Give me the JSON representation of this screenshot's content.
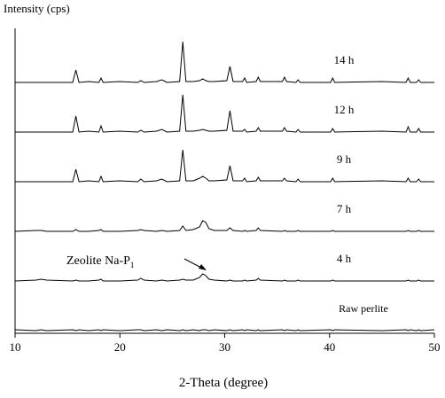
{
  "chart_data": {
    "type": "line",
    "ylabel": "Intensity (cps)",
    "xlabel": "2-Theta (degree)",
    "xlim": [
      10,
      50
    ],
    "xticks": [
      10,
      20,
      30,
      40,
      50
    ],
    "annotation": {
      "text": "Zeolite Na-P",
      "subscript": "1"
    },
    "x": [
      10,
      12,
      12.5,
      13,
      15.5,
      15.8,
      16.1,
      17,
      18,
      18.2,
      18.4,
      20,
      21.7,
      22,
      22.3,
      23.5,
      24,
      24.5,
      25.7,
      26,
      26.3,
      27,
      27.6,
      27.9,
      28.2,
      28.5,
      29,
      30.2,
      30.5,
      30.8,
      31.7,
      31.9,
      32.1,
      33,
      33.2,
      33.4,
      35.5,
      35.7,
      35.9,
      36.8,
      37,
      37.2,
      40.1,
      40.3,
      40.5,
      45,
      47.3,
      47.5,
      47.7,
      48.3,
      48.5,
      48.7,
      50
    ],
    "series": [
      {
        "name": "Raw perlite",
        "color": "#000000",
        "values": [
          1,
          0,
          1,
          0,
          1,
          0,
          1,
          0,
          1,
          0,
          1,
          0,
          1,
          1,
          0,
          1,
          0,
          1,
          0,
          1,
          0,
          1,
          0,
          1,
          1,
          0,
          1,
          0,
          1,
          0,
          1,
          0,
          1,
          0,
          1,
          0,
          1,
          0,
          1,
          0,
          1,
          0,
          1,
          0,
          1,
          0,
          1,
          0,
          1,
          0,
          1,
          0,
          1
        ]
      },
      {
        "name": "4 h",
        "color": "#000000",
        "values": [
          0,
          1,
          2,
          1,
          0,
          1,
          0,
          0,
          1,
          2,
          0,
          0,
          1,
          3,
          1,
          0,
          1,
          0,
          1,
          2,
          1,
          1,
          4,
          8,
          6,
          2,
          1,
          0,
          1,
          0,
          0,
          1,
          0,
          1,
          3,
          1,
          0,
          1,
          0,
          0,
          1,
          0,
          0,
          1,
          0,
          0,
          0,
          1,
          0,
          0,
          1,
          0,
          0
        ]
      },
      {
        "name": "7 h",
        "color": "#000000",
        "values": [
          0,
          1,
          1,
          0,
          0,
          2,
          0,
          0,
          1,
          2,
          0,
          0,
          1,
          2,
          1,
          0,
          1,
          0,
          1,
          6,
          1,
          2,
          5,
          12,
          10,
          3,
          1,
          1,
          4,
          1,
          0,
          1,
          0,
          1,
          4,
          1,
          0,
          1,
          0,
          0,
          1,
          0,
          0,
          1,
          0,
          0,
          0,
          1,
          0,
          0,
          1,
          0,
          0
        ]
      },
      {
        "name": "9 h",
        "color": "#000000",
        "values": [
          0,
          0,
          0,
          0,
          0,
          14,
          0,
          1,
          0,
          6,
          0,
          1,
          0,
          3,
          0,
          1,
          3,
          0,
          1,
          36,
          1,
          1,
          4,
          6,
          4,
          1,
          1,
          2,
          18,
          1,
          1,
          4,
          0,
          1,
          5,
          1,
          1,
          4,
          1,
          0,
          3,
          0,
          0,
          4,
          0,
          1,
          0,
          4,
          0,
          0,
          3,
          0,
          0
        ]
      },
      {
        "name": "12 h",
        "color": "#000000",
        "values": [
          0,
          0,
          0,
          0,
          0,
          18,
          0,
          1,
          0,
          7,
          0,
          1,
          0,
          2,
          0,
          1,
          3,
          0,
          1,
          42,
          1,
          1,
          2,
          3,
          2,
          1,
          1,
          2,
          24,
          1,
          1,
          3,
          0,
          1,
          5,
          1,
          1,
          5,
          1,
          0,
          3,
          0,
          0,
          4,
          0,
          1,
          0,
          6,
          0,
          0,
          4,
          0,
          0
        ]
      },
      {
        "name": "14 h",
        "color": "#000000",
        "values": [
          0,
          0,
          0,
          0,
          0,
          14,
          0,
          1,
          0,
          5,
          0,
          1,
          0,
          2,
          0,
          1,
          3,
          0,
          1,
          46,
          1,
          1,
          2,
          4,
          2,
          1,
          1,
          2,
          18,
          1,
          1,
          5,
          0,
          1,
          6,
          1,
          1,
          6,
          1,
          0,
          3,
          0,
          0,
          5,
          0,
          1,
          0,
          5,
          0,
          0,
          3,
          0,
          0
        ]
      }
    ]
  }
}
